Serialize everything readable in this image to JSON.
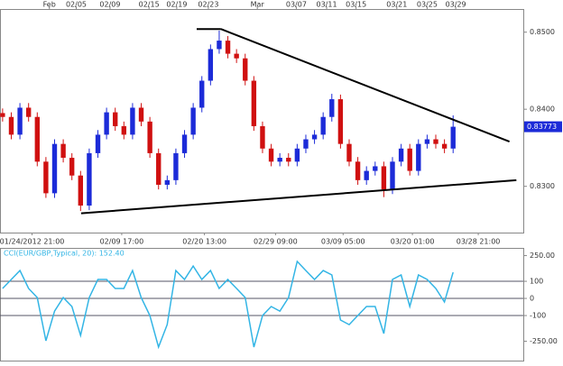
{
  "chart_data": [
    {
      "type": "candlestick",
      "up_color": "#1c2bd8",
      "down_color": "#d01010",
      "open": [
        0.8395,
        0.839,
        0.8367,
        0.8402,
        0.839,
        0.8332,
        0.8291,
        0.8355,
        0.8337,
        0.8314,
        0.8275,
        0.8343,
        0.8367,
        0.8396,
        0.8378,
        0.8367,
        0.8402,
        0.8384,
        0.8343,
        0.8302,
        0.8308,
        0.8343,
        0.8367,
        0.8402,
        0.8437,
        0.8478,
        0.8489,
        0.8472,
        0.8466,
        0.8437,
        0.8378,
        0.8349,
        0.8332,
        0.8337,
        0.8332,
        0.8349,
        0.8361,
        0.8367,
        0.839,
        0.8413,
        0.8355,
        0.8332,
        0.8308,
        0.832,
        0.8326,
        0.8296,
        0.8332,
        0.8349,
        0.832,
        0.8355,
        0.8361,
        0.8355,
        0.8349
      ],
      "high": [
        0.8401,
        0.8396,
        0.8408,
        0.8408,
        0.8396,
        0.8338,
        0.8361,
        0.8361,
        0.8343,
        0.832,
        0.8349,
        0.8373,
        0.8402,
        0.8402,
        0.8384,
        0.8408,
        0.8408,
        0.839,
        0.8349,
        0.8314,
        0.8349,
        0.8373,
        0.8408,
        0.8443,
        0.8484,
        0.8502,
        0.8495,
        0.8478,
        0.8472,
        0.8443,
        0.8384,
        0.8355,
        0.8343,
        0.8343,
        0.8355,
        0.8367,
        0.8373,
        0.8396,
        0.842,
        0.8419,
        0.8361,
        0.8338,
        0.8326,
        0.8332,
        0.8332,
        0.8338,
        0.8355,
        0.8355,
        0.8361,
        0.8367,
        0.8367,
        0.8361,
        0.8392
      ],
      "low": [
        0.8384,
        0.8361,
        0.8361,
        0.8384,
        0.8326,
        0.8285,
        0.8285,
        0.8331,
        0.8308,
        0.8268,
        0.8269,
        0.8337,
        0.8361,
        0.8372,
        0.8361,
        0.8361,
        0.8378,
        0.8337,
        0.8296,
        0.8296,
        0.8302,
        0.8337,
        0.8361,
        0.8396,
        0.8431,
        0.8472,
        0.8466,
        0.846,
        0.8431,
        0.8372,
        0.8343,
        0.8326,
        0.8326,
        0.8326,
        0.8326,
        0.8343,
        0.8355,
        0.8361,
        0.8384,
        0.8349,
        0.8326,
        0.8302,
        0.8302,
        0.8314,
        0.8286,
        0.829,
        0.8326,
        0.8314,
        0.8314,
        0.8349,
        0.8349,
        0.8343,
        0.8343
      ],
      "close": [
        0.839,
        0.8367,
        0.8402,
        0.839,
        0.8332,
        0.8291,
        0.8355,
        0.8337,
        0.8314,
        0.8275,
        0.8343,
        0.8367,
        0.8396,
        0.8378,
        0.8367,
        0.8402,
        0.8384,
        0.8343,
        0.8302,
        0.8308,
        0.8343,
        0.8367,
        0.8402,
        0.8437,
        0.8478,
        0.8489,
        0.8472,
        0.8466,
        0.8437,
        0.8378,
        0.8349,
        0.8332,
        0.8337,
        0.8332,
        0.8349,
        0.8361,
        0.8367,
        0.839,
        0.8413,
        0.8355,
        0.8332,
        0.8308,
        0.832,
        0.8326,
        0.8296,
        0.8332,
        0.8349,
        0.832,
        0.8355,
        0.8361,
        0.8355,
        0.8349,
        0.83773
      ],
      "last_price_label": "0.83773",
      "xlim": [
        -0.3,
        60.1
      ],
      "ylim": [
        0.824,
        0.853
      ],
      "yticks": [
        {
          "value": 0.85,
          "label": "0.8500"
        },
        {
          "value": 0.84,
          "label": "0.8400"
        },
        {
          "value": 0.83,
          "label": "0.8300"
        }
      ],
      "xticks_top": [
        {
          "value": 5.4,
          "label": "Feb"
        },
        {
          "value": 8.5,
          "label": "02/05"
        },
        {
          "value": 12.4,
          "label": "02/09"
        },
        {
          "value": 16.9,
          "label": "02/15"
        },
        {
          "value": 20.1,
          "label": "02/19"
        },
        {
          "value": 23.75,
          "label": "02/23"
        },
        {
          "value": 29.4,
          "label": "Mar"
        },
        {
          "value": 33.9,
          "label": "03/07"
        },
        {
          "value": 37.4,
          "label": "03/11"
        },
        {
          "value": 40.8,
          "label": "03/15"
        },
        {
          "value": 45.5,
          "label": "03/21"
        },
        {
          "value": 49,
          "label": "03/25"
        },
        {
          "value": 52.3,
          "label": "03/29"
        }
      ],
      "xticks": [
        {
          "value": 3.4,
          "label": "01/24/2012 21:00"
        },
        {
          "value": 13.75,
          "label": "02/09 17:00"
        },
        {
          "value": 23.3,
          "label": "02/20 13:00"
        },
        {
          "value": 31.5,
          "label": "02/29 09:00"
        },
        {
          "value": 39.3,
          "label": "03/09 05:00"
        },
        {
          "value": 47.3,
          "label": "03/20 01:00"
        },
        {
          "value": 54.9,
          "label": "03/28 21:00"
        }
      ],
      "trendlines": [
        {
          "x": [
            22.4,
            25.2
          ],
          "y": [
            0.8504,
            0.8504
          ]
        },
        {
          "x": [
            25.2,
            58.5
          ],
          "y": [
            0.8504,
            0.8358
          ]
        },
        {
          "x": [
            9.06,
            59.3
          ],
          "y": [
            0.8265,
            0.8308
          ]
        }
      ],
      "grid": false
    },
    {
      "type": "line",
      "title": "CCI(EUR/GBP,Typical, 20): 152.40",
      "color": "#33b5e5",
      "values": [
        58,
        111,
        163,
        58,
        5,
        -247,
        -74,
        5,
        -47,
        -216,
        5,
        111,
        111,
        58,
        58,
        163,
        5,
        -100,
        -284,
        -153,
        163,
        111,
        189,
        111,
        163,
        58,
        111,
        58,
        5,
        -284,
        -100,
        -47,
        -74,
        5,
        216,
        163,
        111,
        163,
        137,
        -126,
        -153,
        -100,
        -47,
        -47,
        -205,
        111,
        137,
        -47,
        137,
        111,
        58,
        -21,
        152.4
      ],
      "xlim": [
        -0.3,
        60.1
      ],
      "ylim": [
        -363,
        295
      ],
      "yticks": [
        {
          "value": 250,
          "label": "250.00"
        },
        100,
        0,
        -100,
        {
          "value": -250,
          "label": "-250.00"
        }
      ],
      "levels": [
        100,
        0,
        -100
      ],
      "grid": false
    }
  ]
}
